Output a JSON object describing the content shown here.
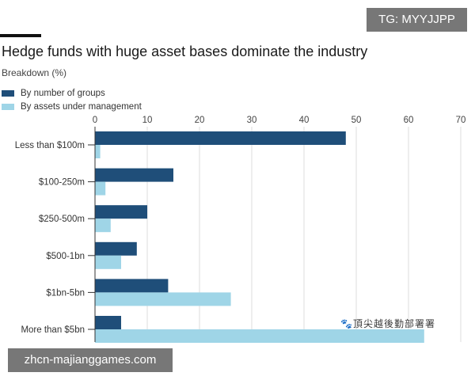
{
  "watermarks": {
    "tg": "TG: MYYJJPP",
    "site": "zhcn-majianggames.com",
    "overlay": "🐾頂尖越後勤部署署"
  },
  "colors": {
    "groups": "#1f4e79",
    "assets": "#9fd5e7",
    "grid": "#dcdcdc",
    "axis": "#333333"
  },
  "chart_data": {
    "type": "bar",
    "orientation": "horizontal",
    "title": "Hedge funds with huge asset bases dominate the industry",
    "subtitle": "Breakdown (%)",
    "categories": [
      "Less than $100m",
      "$100-250m",
      "$250-500m",
      "$500-1bn",
      "$1bn-5bn",
      "More than $5bn"
    ],
    "series": [
      {
        "name": "By number of groups",
        "values": [
          48,
          15,
          10,
          8,
          14,
          5
        ]
      },
      {
        "name": "By assets under management",
        "values": [
          1,
          2,
          3,
          5,
          26,
          63
        ]
      }
    ],
    "xlim": [
      0,
      70
    ],
    "xticks": [
      "0",
      "10",
      "20",
      "30",
      "40",
      "50",
      "60",
      "70"
    ],
    "grid": true,
    "legend_position": "top-left"
  }
}
